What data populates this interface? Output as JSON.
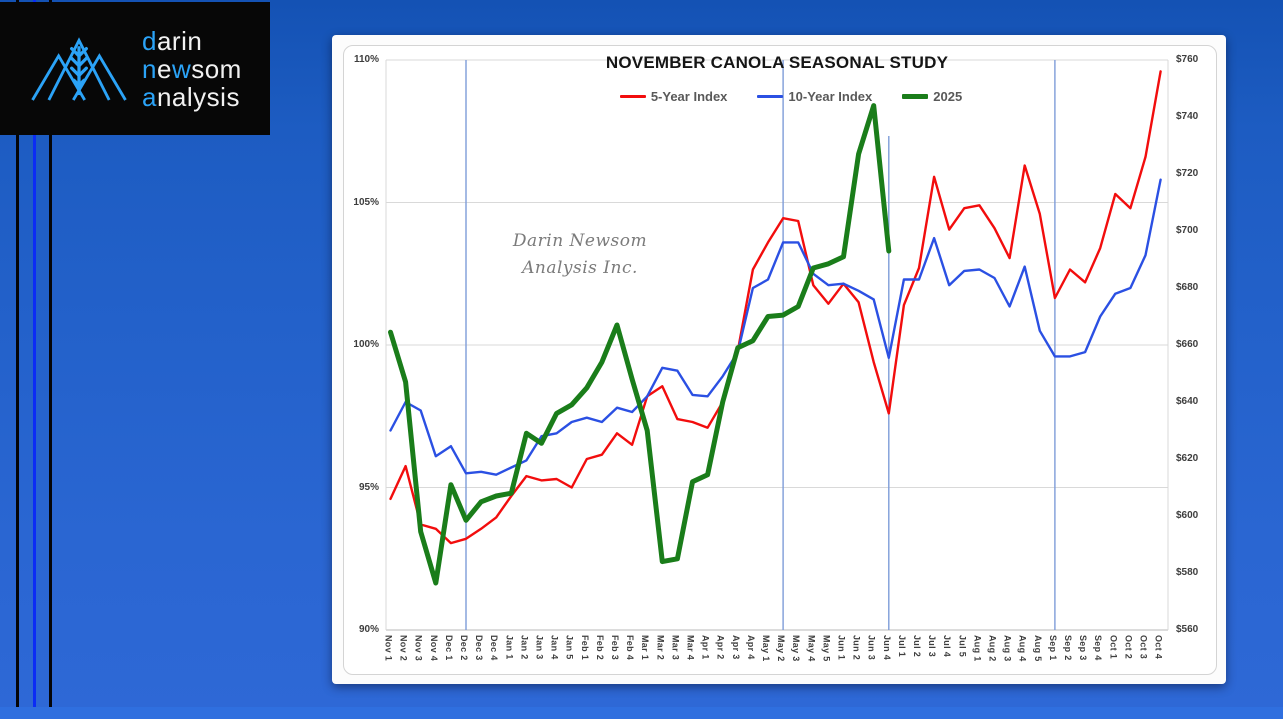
{
  "wallpaper": {
    "stripes": [
      {
        "name": "left-black-stripe-1",
        "x": 16,
        "width": 3,
        "color": "#050508"
      },
      {
        "name": "left-bright-blue-stripe",
        "x": 33,
        "width": 3,
        "color": "#0b2cf5"
      },
      {
        "name": "left-black-stripe-2",
        "x": 49,
        "width": 3,
        "color": "#050508"
      }
    ],
    "bottom_band_color": "#2f6fdf"
  },
  "logo": {
    "accent_color": "#2ba3f7",
    "text_color": "#f1f1f1",
    "lines": [
      [
        {
          "t": "d",
          "a": true
        },
        {
          "t": "arin",
          "a": false
        }
      ],
      [
        {
          "t": "n",
          "a": true
        },
        {
          "t": "e",
          "a": false
        },
        {
          "t": "w",
          "a": true
        },
        {
          "t": "som",
          "a": false
        }
      ],
      [
        {
          "t": "a",
          "a": true
        },
        {
          "t": "nalysis",
          "a": false
        }
      ]
    ]
  },
  "watermark": {
    "line1": "Darin Newsom",
    "line2": "Analysis Inc."
  },
  "chart_data": {
    "type": "line",
    "title": "NOVEMBER CANOLA SEASONAL STUDY",
    "legend_position": "top",
    "grid": "horizontal",
    "left_axis": {
      "ticks": [
        "110%",
        "105%",
        "100%",
        "95%",
        "90%"
      ],
      "min": 90,
      "max": 110,
      "unit": "percent"
    },
    "right_axis": {
      "ticks": [
        "$760",
        "$740",
        "$720",
        "$700",
        "$680",
        "$660",
        "$640",
        "$620",
        "$600",
        "$580",
        "$560"
      ],
      "min": 560,
      "max": 760,
      "unit": "dollars"
    },
    "categories": [
      "Nov 1",
      "Nov 2",
      "Nov 3",
      "Nov 4",
      "Dec 1",
      "Dec 2",
      "Dec 3",
      "Dec 4",
      "Jan 1",
      "Jan 2",
      "Jan 3",
      "Jan 4",
      "Jan 5",
      "Feb 1",
      "Feb 2",
      "Feb 3",
      "Feb 4",
      "Mar 1",
      "Mar 2",
      "Mar 3",
      "Mar 4",
      "Apr 1",
      "Apr 2",
      "Apr 3",
      "Apr 4",
      "May 1",
      "May 2",
      "May 3",
      "May 4",
      "May 5",
      "Jun 1",
      "Jun 2",
      "Jun 3",
      "Jun 4",
      "Jul 1",
      "Jul 2",
      "Jul 3",
      "Jul 4",
      "Jul 5",
      "Aug 1",
      "Aug 2",
      "Aug 3",
      "Aug 4",
      "Aug 5",
      "Sep 1",
      "Sep 2",
      "Sep 3",
      "Sep 4",
      "Oct 1",
      "Oct 2",
      "Oct 3",
      "Oct 4"
    ],
    "vertical_markers": [
      {
        "category": "Dec 2",
        "full_height": true
      },
      {
        "category": "May 2",
        "full_height": true
      },
      {
        "category": "Jun 4",
        "full_height": false
      },
      {
        "category": "Sep 1",
        "full_height": true
      }
    ],
    "marker_color": "#7e9cd9",
    "series": [
      {
        "name": "5-Year Index",
        "color": "#f20d0d",
        "width": 2.4,
        "values": [
          94.6,
          95.75,
          93.7,
          93.55,
          93.05,
          93.2,
          93.55,
          93.95,
          94.7,
          95.4,
          95.25,
          95.3,
          95.0,
          96.0,
          96.15,
          96.9,
          96.5,
          98.2,
          98.55,
          97.4,
          97.3,
          97.1,
          98.0,
          99.8,
          102.65,
          103.6,
          104.45,
          104.35,
          102.1,
          101.45,
          102.15,
          101.5,
          99.4,
          97.6,
          101.4,
          102.7,
          105.9,
          104.05,
          104.8,
          104.9,
          104.1,
          103.05,
          106.3,
          104.6,
          101.65,
          102.65,
          102.2,
          103.4,
          105.3,
          104.8,
          106.6,
          109.6
        ]
      },
      {
        "name": "10-Year Index",
        "color": "#2b50e3",
        "width": 2.4,
        "values": [
          97.0,
          98.0,
          97.7,
          96.1,
          96.45,
          95.5,
          95.55,
          95.45,
          95.7,
          95.95,
          96.8,
          96.9,
          97.3,
          97.45,
          97.3,
          97.8,
          97.65,
          98.2,
          99.2,
          99.1,
          98.25,
          98.2,
          98.9,
          99.75,
          102.0,
          102.3,
          103.6,
          103.6,
          102.5,
          102.1,
          102.15,
          101.9,
          101.6,
          99.55,
          102.3,
          102.3,
          103.75,
          102.1,
          102.6,
          102.65,
          102.35,
          101.35,
          102.75,
          100.5,
          99.6,
          99.6,
          99.75,
          101.0,
          101.8,
          102.0,
          103.15,
          105.8
        ]
      },
      {
        "name": "2025",
        "color": "#1a7d1a",
        "width": 5,
        "values": [
          100.45,
          98.7,
          93.45,
          91.65,
          95.1,
          93.85,
          94.5,
          94.7,
          94.8,
          96.9,
          96.55,
          97.6,
          97.9,
          98.5,
          99.4,
          100.7,
          98.8,
          97.0,
          92.4,
          92.5,
          95.2,
          95.45,
          98.0,
          99.9,
          100.15,
          101.0,
          101.05,
          101.35,
          102.7,
          102.85,
          103.1,
          106.7,
          108.4,
          103.3
        ]
      }
    ]
  }
}
